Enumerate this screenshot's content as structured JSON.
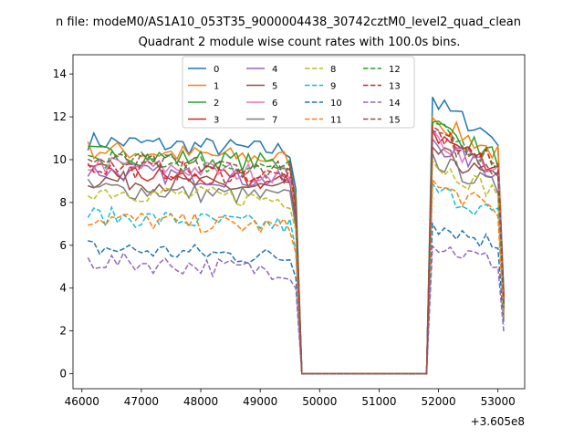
{
  "chart_data": {
    "type": "line",
    "suptitle": "n file: modeM0/AS1A10_053T35_9000004438_30742cztM0_level2_quad_clean",
    "title": "Quadrant 2 module wise count rates with 100.0s bins.",
    "xlabel": "",
    "ylabel": "",
    "x_offset_label": "+3.605e8",
    "xlim": [
      45850,
      53450
    ],
    "ylim": [
      -0.7,
      14.9
    ],
    "xticks": [
      46000,
      47000,
      48000,
      49000,
      50000,
      51000,
      52000,
      53000
    ],
    "yticks": [
      0,
      2,
      4,
      6,
      8,
      10,
      12,
      14
    ],
    "grid": false,
    "legend_position": "upper-center",
    "legend_columns": 4,
    "segments": [
      {
        "x_start": 46100,
        "x_end": 49600,
        "step": 100
      },
      {
        "x_start": 49700,
        "x_end": 51800,
        "step": 100,
        "zero": true
      },
      {
        "x_start": 51900,
        "x_end": 53100,
        "step": 100
      }
    ],
    "series": [
      {
        "name": "0",
        "color": "#1f77b4",
        "dash": "solid",
        "level1": 10.4,
        "level2": 12.7,
        "last": 3.7
      },
      {
        "name": "1",
        "color": "#ff7f0e",
        "dash": "solid",
        "level1": 10.0,
        "level2": 11.9,
        "last": 3.2
      },
      {
        "name": "2",
        "color": "#2ca02c",
        "dash": "solid",
        "level1": 9.8,
        "level2": 11.7,
        "last": 3.0
      },
      {
        "name": "3",
        "color": "#d62728",
        "dash": "solid",
        "level1": 8.9,
        "level2": 11.2,
        "last": 3.4
      },
      {
        "name": "4",
        "color": "#9467bd",
        "dash": "solid",
        "level1": 9.0,
        "level2": 10.8,
        "last": 2.9
      },
      {
        "name": "5",
        "color": "#8c564b",
        "dash": "solid",
        "level1": 8.6,
        "level2": 10.4,
        "last": 3.1
      },
      {
        "name": "6",
        "color": "#e377c2",
        "dash": "solid",
        "level1": 9.3,
        "level2": 11.0,
        "last": 2.8
      },
      {
        "name": "7",
        "color": "#7f7f7f",
        "dash": "solid",
        "level1": 8.2,
        "level2": 10.0,
        "last": 3.0
      },
      {
        "name": "8",
        "color": "#bcbd22",
        "dash": "dashed",
        "level1": 8.1,
        "level2": 9.8,
        "last": 2.7
      },
      {
        "name": "9",
        "color": "#17becf",
        "dash": "dashed",
        "level1": 6.9,
        "level2": 8.6,
        "last": 2.5
      },
      {
        "name": "10",
        "color": "#1f77b4",
        "dash": "dashed",
        "level1": 5.4,
        "level2": 7.0,
        "last": 2.3
      },
      {
        "name": "11",
        "color": "#ff7f0e",
        "dash": "dashed",
        "level1": 6.8,
        "level2": 8.8,
        "last": 2.6
      },
      {
        "name": "12",
        "color": "#2ca02c",
        "dash": "dashed",
        "level1": 9.6,
        "level2": 11.5,
        "last": 3.3
      },
      {
        "name": "13",
        "color": "#d62728",
        "dash": "dashed",
        "level1": 9.2,
        "level2": 11.3,
        "last": 3.5
      },
      {
        "name": "14",
        "color": "#9467bd",
        "dash": "dashed",
        "level1": 4.8,
        "level2": 6.0,
        "last": 1.9
      },
      {
        "name": "15",
        "color": "#8c564b",
        "dash": "dashed",
        "level1": 9.5,
        "level2": 11.1,
        "last": 3.1
      }
    ]
  }
}
